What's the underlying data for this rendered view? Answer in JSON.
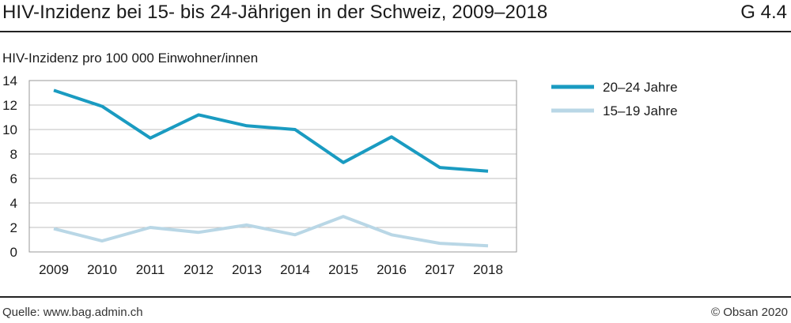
{
  "header": {
    "title": "HIV-Inzidenz bei 15- bis 24-Jährigen in der Schweiz, 2009–2018",
    "figure_number": "G 4.4"
  },
  "footer": {
    "source": "Quelle: www.bag.admin.ch",
    "copyright": "© Obsan 2020"
  },
  "colors": {
    "series_20_24": "#1a9bc1",
    "series_15_19": "#b9d7e6",
    "grid": "#bfbfbf"
  },
  "chart_data": {
    "type": "line",
    "title": "HIV-Inzidenz bei 15- bis 24-Jährigen in der Schweiz, 2009–2018",
    "xlabel": "",
    "ylabel": "HIV-Inzidenz pro 100 000 Einwohner/innen",
    "x": [
      "2009",
      "2010",
      "2011",
      "2012",
      "2013",
      "2014",
      "2015",
      "2016",
      "2017",
      "2018"
    ],
    "ylim": [
      0,
      14
    ],
    "yticks": [
      "0",
      "2",
      "4",
      "6",
      "8",
      "10",
      "12",
      "14"
    ],
    "grid": true,
    "legend_position": "top-right",
    "series": [
      {
        "name": "20–24 Jahre",
        "values": [
          13.2,
          11.9,
          9.3,
          11.2,
          10.3,
          10.0,
          7.3,
          9.4,
          6.9,
          6.6
        ]
      },
      {
        "name": "15–19 Jahre",
        "values": [
          1.9,
          0.9,
          2.0,
          1.6,
          2.2,
          1.4,
          2.9,
          1.4,
          0.7,
          0.5
        ]
      }
    ]
  }
}
